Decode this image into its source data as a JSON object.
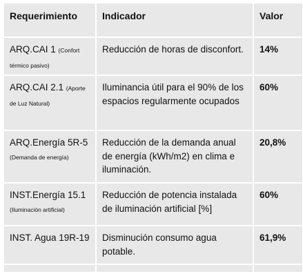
{
  "headers": {
    "requirement": "Requerimiento",
    "indicator": "Indicador",
    "value": "Valor"
  },
  "rows": [
    {
      "code": "ARQ.CAI 1",
      "sub_inline": "(Confort",
      "sub_rest": "térmico pasivo)",
      "indicator": "Reducción de horas de disconfort.",
      "value": "14%"
    },
    {
      "code": "ARQ.CAI 2.1",
      "sub_inline": "(Aporte",
      "sub_rest": "de Luz Natural)",
      "indicator": "Iluminancia útil para el 90% de los espacios regularmente ocupados",
      "value": "60%"
    },
    {
      "code": "ARQ.Energía 5R-5",
      "sub_inline": "",
      "sub_rest": "(Demanda de energía)",
      "indicator": "Reducción de la demanda anual de energía (kWh/m2) en clima e iluminación.",
      "value": "20,8%"
    },
    {
      "code": "INST.Energía 15.1",
      "sub_inline": "",
      "sub_rest": "(Iluminación artificial)",
      "indicator": "Reducción de potencia instalada de iluminación artificial [%]",
      "value": "60%"
    },
    {
      "code": "INST. Agua 19R-19",
      "sub_inline": "",
      "sub_rest": "",
      "indicator": "Disminución consumo agua potable.",
      "value": "61,9%"
    }
  ]
}
